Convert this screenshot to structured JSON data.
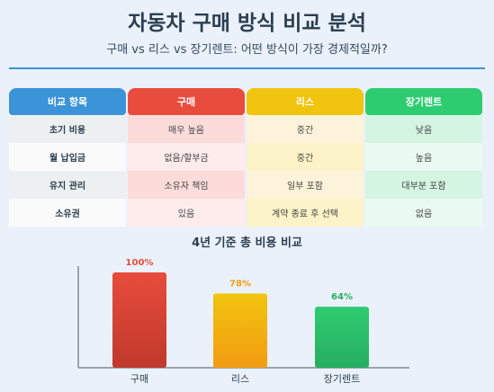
{
  "title": "자동차 구매 방식 비교 분석",
  "subtitle": "구매 vs 리스 vs 장기렌트: 어떤 방식이 가장 경제적일까?",
  "colors": {
    "header_label": "#3498db",
    "purchase": "#e74c3c",
    "lease": "#f1c40f",
    "rent": "#2ecc71"
  },
  "table": {
    "headers": [
      "비교 항목",
      "구매",
      "리스",
      "장기렌트"
    ],
    "rows": [
      {
        "label": "초기 비용",
        "values": [
          "매우 높음",
          "중간",
          "낮음"
        ]
      },
      {
        "label": "월 납입금",
        "values": [
          "없음/할부금",
          "중간",
          "높음"
        ]
      },
      {
        "label": "유지 관리",
        "values": [
          "소유자 책임",
          "일부 포함",
          "대부분 포함"
        ]
      },
      {
        "label": "소유권",
        "values": [
          "있음",
          "계약 종료 후 선택",
          "없음"
        ]
      }
    ]
  },
  "chart_data": {
    "type": "bar",
    "title": "4년 기준 총 비용 비교",
    "categories": [
      "구매",
      "리스",
      "장기렌트"
    ],
    "values": [
      100,
      78,
      64
    ],
    "value_labels": [
      "100%",
      "78%",
      "64%"
    ],
    "colors": [
      "#e74c3c",
      "#f1c40f",
      "#2ecc71"
    ],
    "label_colors": [
      "#e74c3c",
      "#f39c12",
      "#27ae60"
    ],
    "ylim": [
      0,
      100
    ],
    "grid": false,
    "xlabel": "",
    "ylabel": ""
  }
}
